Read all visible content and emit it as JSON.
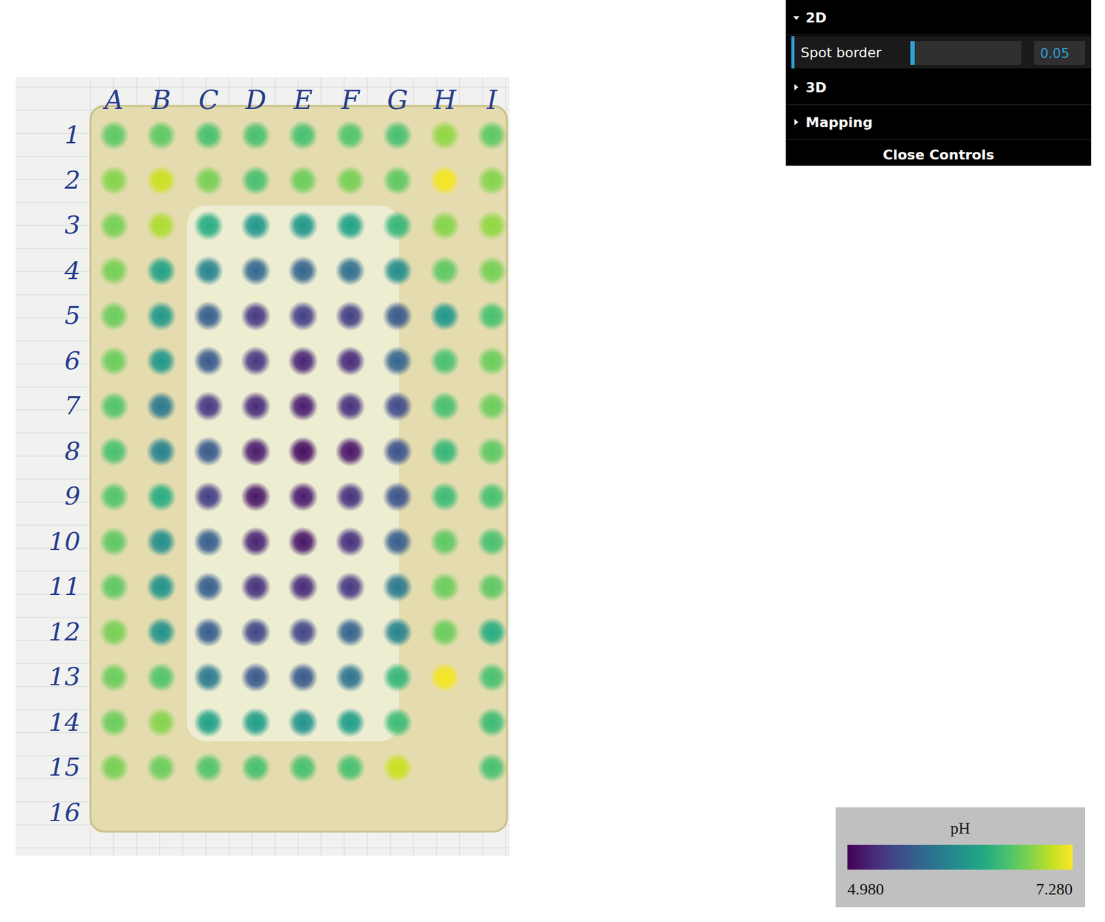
{
  "chart_data": {
    "type": "heatmap",
    "x_categories": [
      "A",
      "B",
      "C",
      "D",
      "E",
      "F",
      "G",
      "H",
      "I"
    ],
    "y_categories": [
      "1",
      "2",
      "3",
      "4",
      "5",
      "6",
      "7",
      "8",
      "9",
      "10",
      "11",
      "12",
      "13",
      "14",
      "15",
      "16"
    ],
    "cells": [
      [
        6.7,
        6.7,
        6.6,
        6.6,
        6.6,
        6.65,
        6.6,
        6.9,
        6.7
      ],
      [
        6.85,
        7.1,
        6.8,
        6.6,
        6.75,
        6.8,
        6.7,
        7.25,
        6.85
      ],
      [
        6.8,
        7.0,
        6.4,
        6.2,
        6.2,
        6.3,
        6.5,
        6.85,
        6.9
      ],
      [
        6.8,
        6.3,
        6.0,
        5.75,
        5.7,
        5.8,
        6.1,
        6.7,
        6.8
      ],
      [
        6.75,
        6.2,
        5.65,
        5.35,
        5.4,
        5.4,
        5.6,
        6.2,
        6.6
      ],
      [
        6.75,
        6.2,
        5.6,
        5.35,
        5.2,
        5.25,
        5.7,
        6.6,
        6.75
      ],
      [
        6.65,
        5.9,
        5.35,
        5.25,
        5.15,
        5.3,
        5.5,
        6.6,
        6.75
      ],
      [
        6.6,
        6.0,
        5.6,
        5.15,
        5.05,
        5.1,
        5.55,
        6.5,
        6.7
      ],
      [
        6.65,
        6.4,
        5.4,
        5.1,
        5.15,
        5.3,
        5.55,
        6.55,
        6.6
      ],
      [
        6.7,
        6.1,
        5.65,
        5.2,
        5.1,
        5.3,
        5.65,
        6.7,
        6.6
      ],
      [
        6.7,
        6.15,
        5.65,
        5.3,
        5.25,
        5.35,
        5.9,
        6.75,
        6.7
      ],
      [
        6.8,
        6.15,
        5.65,
        5.45,
        5.45,
        5.7,
        6.0,
        6.75,
        6.4
      ],
      [
        6.75,
        6.65,
        5.9,
        5.6,
        5.6,
        5.85,
        6.5,
        7.25,
        6.6
      ],
      [
        6.75,
        6.85,
        6.3,
        6.25,
        6.15,
        6.25,
        6.55,
        null,
        6.55
      ],
      [
        6.8,
        6.75,
        6.65,
        6.6,
        6.6,
        6.6,
        7.1,
        null,
        6.6
      ],
      [
        null,
        null,
        null,
        null,
        null,
        null,
        null,
        null,
        null
      ]
    ],
    "colorbar_title": "pH",
    "colorbar_range": [
      4.98,
      7.28
    ],
    "colorbar_ticks": [
      {
        "value": 4.98,
        "label": "4.980"
      },
      {
        "value": 7.28,
        "label": "7.280"
      }
    ]
  },
  "controls": {
    "sections": [
      "2D",
      "3D",
      "Mapping"
    ],
    "slider": {
      "label": "Spot border",
      "value": 0.05
    },
    "close": "Close Controls"
  }
}
